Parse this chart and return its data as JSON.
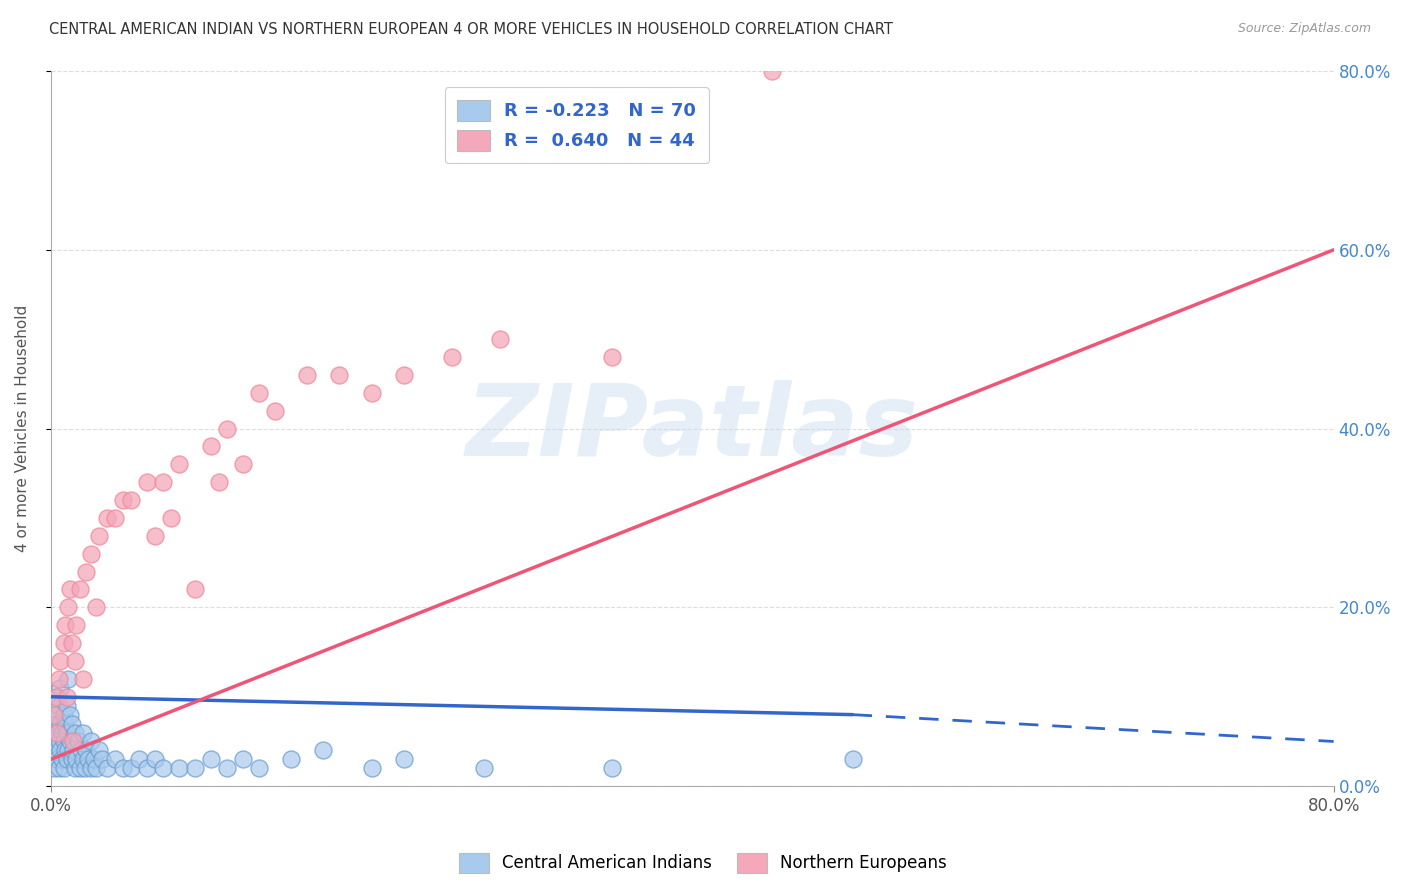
{
  "title": "CENTRAL AMERICAN INDIAN VS NORTHERN EUROPEAN 4 OR MORE VEHICLES IN HOUSEHOLD CORRELATION CHART",
  "source": "Source: ZipAtlas.com",
  "ylabel": "4 or more Vehicles in Household",
  "ytick_values": [
    0.0,
    20.0,
    40.0,
    60.0,
    80.0
  ],
  "xlim": [
    0.0,
    80.0
  ],
  "ylim": [
    0.0,
    80.0
  ],
  "watermark": "ZIPatlas",
  "legend_blue_label": "Central American Indians",
  "legend_pink_label": "Northern Europeans",
  "R_blue": -0.223,
  "N_blue": 70,
  "R_pink": 0.64,
  "N_pink": 44,
  "blue_color": "#A8CAEC",
  "pink_color": "#F4A8BA",
  "blue_line_color": "#3366CC",
  "pink_line_color": "#EE5577",
  "blue_marker_edge": "#6699CC",
  "pink_marker_edge": "#EE8899",
  "blue_points_x": [
    0.1,
    0.2,
    0.2,
    0.3,
    0.3,
    0.3,
    0.4,
    0.4,
    0.4,
    0.5,
    0.5,
    0.5,
    0.6,
    0.6,
    0.6,
    0.7,
    0.7,
    0.8,
    0.8,
    0.8,
    0.9,
    0.9,
    1.0,
    1.0,
    1.0,
    1.1,
    1.1,
    1.2,
    1.2,
    1.3,
    1.3,
    1.4,
    1.5,
    1.5,
    1.6,
    1.7,
    1.8,
    1.9,
    2.0,
    2.0,
    2.1,
    2.2,
    2.3,
    2.5,
    2.5,
    2.7,
    2.8,
    3.0,
    3.2,
    3.5,
    4.0,
    4.5,
    5.0,
    5.5,
    6.0,
    6.5,
    7.0,
    8.0,
    9.0,
    10.0,
    11.0,
    12.0,
    13.0,
    15.0,
    17.0,
    20.0,
    22.0,
    27.0,
    35.0,
    50.0
  ],
  "blue_points_y": [
    3.0,
    2.0,
    5.0,
    4.0,
    6.0,
    8.0,
    3.0,
    7.0,
    10.0,
    2.0,
    5.0,
    9.0,
    4.0,
    7.0,
    11.0,
    3.0,
    6.0,
    2.0,
    5.0,
    8.0,
    4.0,
    7.0,
    3.0,
    6.0,
    9.0,
    4.0,
    12.0,
    5.0,
    8.0,
    3.0,
    7.0,
    4.0,
    2.0,
    6.0,
    3.0,
    5.0,
    2.0,
    4.0,
    3.0,
    6.0,
    2.0,
    4.0,
    3.0,
    2.0,
    5.0,
    3.0,
    2.0,
    4.0,
    3.0,
    2.0,
    3.0,
    2.0,
    2.0,
    3.0,
    2.0,
    3.0,
    2.0,
    2.0,
    2.0,
    3.0,
    2.0,
    3.0,
    2.0,
    3.0,
    4.0,
    2.0,
    3.0,
    2.0,
    2.0,
    3.0
  ],
  "pink_points_x": [
    0.2,
    0.3,
    0.5,
    0.6,
    0.8,
    0.9,
    1.0,
    1.1,
    1.2,
    1.3,
    1.5,
    1.6,
    1.8,
    2.0,
    2.2,
    2.5,
    2.8,
    3.0,
    3.5,
    4.0,
    4.5,
    5.0,
    6.0,
    6.5,
    7.0,
    7.5,
    8.0,
    9.0,
    10.0,
    10.5,
    11.0,
    12.0,
    13.0,
    14.0,
    16.0,
    18.0,
    20.0,
    22.0,
    25.0,
    28.0,
    35.0,
    45.0,
    0.4,
    1.4
  ],
  "pink_points_y": [
    8.0,
    10.0,
    12.0,
    14.0,
    16.0,
    18.0,
    10.0,
    20.0,
    22.0,
    16.0,
    14.0,
    18.0,
    22.0,
    12.0,
    24.0,
    26.0,
    20.0,
    28.0,
    30.0,
    30.0,
    32.0,
    32.0,
    34.0,
    28.0,
    34.0,
    30.0,
    36.0,
    22.0,
    38.0,
    34.0,
    40.0,
    36.0,
    44.0,
    42.0,
    46.0,
    46.0,
    44.0,
    46.0,
    48.0,
    50.0,
    48.0,
    80.0,
    6.0,
    5.0
  ],
  "blue_line_x0": 0.0,
  "blue_line_x_solid_end": 50.0,
  "blue_line_x_dash_end": 80.0,
  "blue_line_y0": 10.0,
  "blue_line_y_solid_end": 8.0,
  "blue_line_y_dash_end": 5.0,
  "pink_line_x0": 0.0,
  "pink_line_x_end": 80.0,
  "pink_line_y0": 3.0,
  "pink_line_y_end": 60.0
}
